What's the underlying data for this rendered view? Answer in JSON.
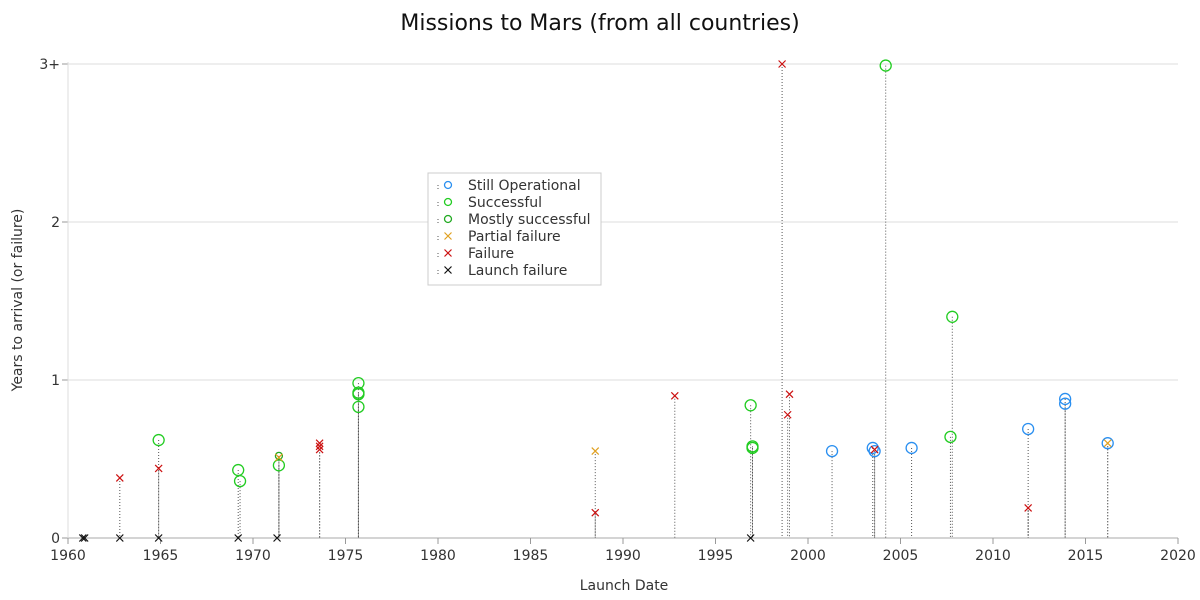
{
  "chart_data": {
    "type": "scatter",
    "title": "Missions to Mars (from all countries)",
    "xlabel": "Launch Date",
    "ylabel": "Years to arrival (or failure)",
    "xlim": [
      1960,
      2020
    ],
    "ylim": [
      0,
      3
    ],
    "x_ticks": [
      {
        "value": 1960,
        "label": "1960"
      },
      {
        "value": 1965,
        "label": "1965"
      },
      {
        "value": 1970,
        "label": "1970"
      },
      {
        "value": 1975,
        "label": "1975"
      },
      {
        "value": 1980,
        "label": "1980"
      },
      {
        "value": 1985,
        "label": "1985"
      },
      {
        "value": 1990,
        "label": "1990"
      },
      {
        "value": 1995,
        "label": "1995"
      },
      {
        "value": 2000,
        "label": "2000"
      },
      {
        "value": 2005,
        "label": "2005"
      },
      {
        "value": 2010,
        "label": "2010"
      },
      {
        "value": 2015,
        "label": "2015"
      },
      {
        "value": 2020,
        "label": "2020"
      }
    ],
    "y_ticks": [
      {
        "value": 0,
        "label": "0"
      },
      {
        "value": 1,
        "label": "1"
      },
      {
        "value": 2,
        "label": "2"
      },
      {
        "value": 3,
        "label": "3+"
      }
    ],
    "grid": "horizontal",
    "legend_position": "center-left",
    "drop_lines": true,
    "series": [
      {
        "name": "Still Operational",
        "marker": "circle",
        "color": "#2a8ff0",
        "points": [
          {
            "x": 2001.3,
            "y": 0.55
          },
          {
            "x": 2003.5,
            "y": 0.57
          },
          {
            "x": 2003.6,
            "y": 0.55
          },
          {
            "x": 2005.6,
            "y": 0.57
          },
          {
            "x": 2011.9,
            "y": 0.69
          },
          {
            "x": 2013.9,
            "y": 0.88
          },
          {
            "x": 2013.9,
            "y": 0.85
          },
          {
            "x": 2016.2,
            "y": 0.6
          }
        ]
      },
      {
        "name": "Successful",
        "marker": "circle",
        "color": "#22cc22",
        "points": [
          {
            "x": 1964.9,
            "y": 0.62
          },
          {
            "x": 1969.2,
            "y": 0.43
          },
          {
            "x": 1969.3,
            "y": 0.36
          },
          {
            "x": 1971.4,
            "y": 0.46
          },
          {
            "x": 1975.7,
            "y": 0.98
          },
          {
            "x": 1975.7,
            "y": 0.92
          },
          {
            "x": 1975.7,
            "y": 0.91
          },
          {
            "x": 1975.7,
            "y": 0.83
          },
          {
            "x": 1996.9,
            "y": 0.84
          },
          {
            "x": 1997.0,
            "y": 0.58
          },
          {
            "x": 1997.0,
            "y": 0.57
          },
          {
            "x": 2004.2,
            "y": 2.99
          },
          {
            "x": 2007.7,
            "y": 0.64
          },
          {
            "x": 2007.8,
            "y": 1.4
          }
        ]
      },
      {
        "name": "Mostly successful",
        "marker": "circle-small",
        "color": "#22aa22",
        "points": [
          {
            "x": 1971.4,
            "y": 0.52
          }
        ]
      },
      {
        "name": "Partial failure",
        "marker": "x",
        "color": "#e0a020",
        "points": [
          {
            "x": 1971.4,
            "y": 0.51
          },
          {
            "x": 1988.5,
            "y": 0.55
          },
          {
            "x": 2016.2,
            "y": 0.6
          }
        ]
      },
      {
        "name": "Failure",
        "marker": "x",
        "color": "#cc1111",
        "points": [
          {
            "x": 1962.8,
            "y": 0.38
          },
          {
            "x": 1964.9,
            "y": 0.44
          },
          {
            "x": 1973.6,
            "y": 0.6
          },
          {
            "x": 1973.6,
            "y": 0.58
          },
          {
            "x": 1973.6,
            "y": 0.56
          },
          {
            "x": 1988.5,
            "y": 0.16
          },
          {
            "x": 1992.8,
            "y": 0.9
          },
          {
            "x": 1998.6,
            "y": 3.0
          },
          {
            "x": 1999.0,
            "y": 0.91
          },
          {
            "x": 1998.9,
            "y": 0.78
          },
          {
            "x": 2003.6,
            "y": 0.56
          },
          {
            "x": 2011.9,
            "y": 0.19
          }
        ]
      },
      {
        "name": "Launch failure",
        "marker": "x",
        "color": "#111111",
        "points": [
          {
            "x": 1960.8,
            "y": 0.0
          },
          {
            "x": 1960.9,
            "y": 0.0
          },
          {
            "x": 1962.8,
            "y": 0.0
          },
          {
            "x": 1964.9,
            "y": 0.0
          },
          {
            "x": 1969.2,
            "y": 0.0
          },
          {
            "x": 1971.3,
            "y": 0.0
          },
          {
            "x": 1996.9,
            "y": 0.0
          }
        ]
      }
    ]
  }
}
